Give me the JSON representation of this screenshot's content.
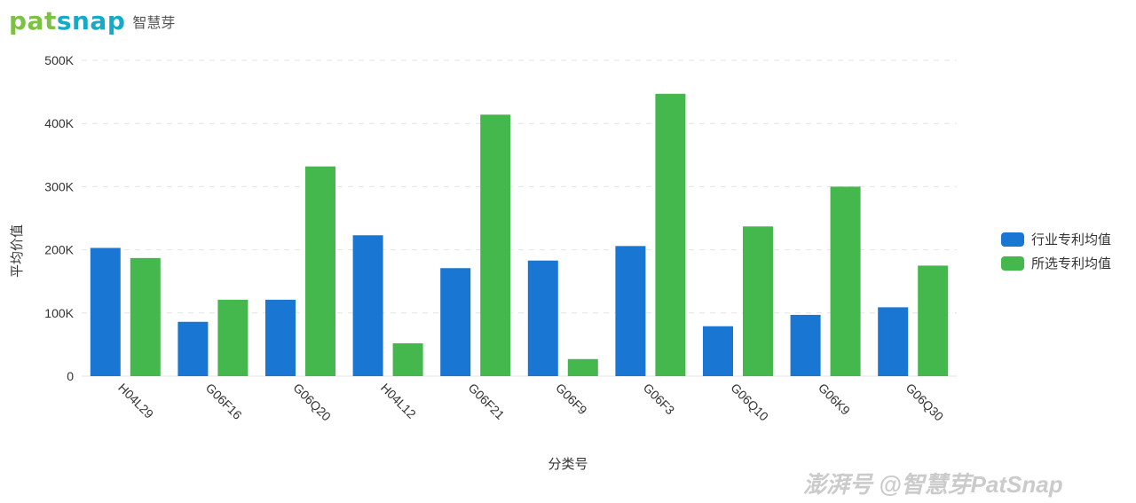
{
  "brand": {
    "logo_part1": "pat",
    "logo_part2": "snap",
    "subtitle": "智慧芽"
  },
  "watermark": "澎湃号 @智慧芽PatSnap",
  "colors": {
    "industry": "#1976d2",
    "selected": "#44b74d",
    "grid": "#e4e4e4"
  },
  "chart_data": {
    "type": "bar",
    "categories": [
      "H04L29",
      "G06F16",
      "G06Q20",
      "H04L12",
      "G06F21",
      "G06F9",
      "G06F3",
      "G06Q10",
      "G06K9",
      "G06Q30"
    ],
    "series": [
      {
        "name": "行业专利均值",
        "values": [
          203000,
          86000,
          121000,
          223000,
          171000,
          183000,
          206000,
          79000,
          97000,
          109000
        ]
      },
      {
        "name": "所选专利均值",
        "values": [
          187000,
          121000,
          332000,
          52000,
          414000,
          27000,
          447000,
          237000,
          300000,
          175000
        ]
      }
    ],
    "xlabel": "分类号",
    "ylabel": "平均价值",
    "ylim": [
      0,
      500000
    ],
    "yticks": [
      {
        "value": 0,
        "label": "0"
      },
      {
        "value": 100000,
        "label": "100K"
      },
      {
        "value": 200000,
        "label": "200K"
      },
      {
        "value": 300000,
        "label": "300K"
      },
      {
        "value": 400000,
        "label": "400K"
      },
      {
        "value": 500000,
        "label": "500K"
      }
    ],
    "grid": true,
    "legend_position": "right"
  }
}
